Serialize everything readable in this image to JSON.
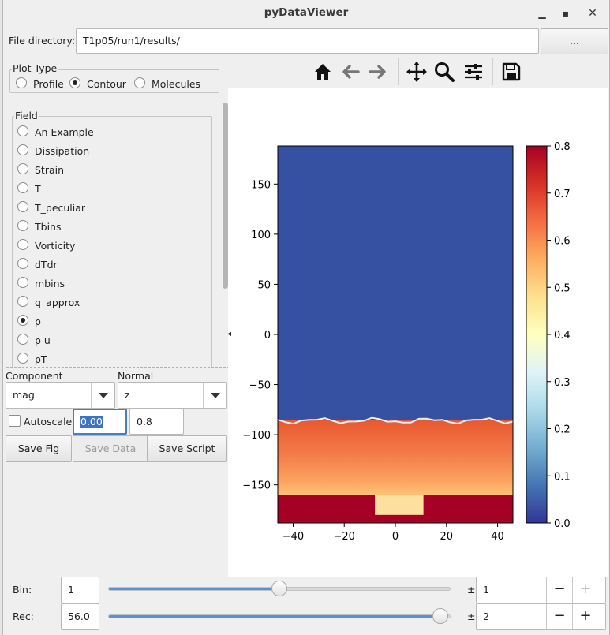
{
  "window": {
    "title": "pyDataViewer"
  },
  "file_dir": {
    "label": "File directory:",
    "value": "T1p05/run1/results/",
    "browse_label": "..."
  },
  "plot_type": {
    "title": "Plot Type",
    "options": [
      "Profile",
      "Contour",
      "Molecules"
    ],
    "selected": "Contour"
  },
  "field": {
    "title": "Field",
    "items": [
      "An Example",
      "Dissipation",
      "Strain",
      "T",
      "T_peculiar",
      "Tbins",
      "Vorticity",
      "dTdr",
      "mbins",
      "q_approx",
      "ρ",
      "ρ u",
      "ρT"
    ],
    "selected": "ρ"
  },
  "component": {
    "label": "Component",
    "value": "mag"
  },
  "normal": {
    "label": "Normal",
    "value": "z"
  },
  "autoscale": {
    "label": "Autoscale",
    "checked": false,
    "min": "0.00",
    "max": "0.8"
  },
  "buttons": {
    "save_fig": "Save Fig",
    "save_data": "Save Data",
    "save_script": "Save Script"
  },
  "toolbar": [
    "home-icon",
    "back-arrow-icon",
    "forward-arrow-icon",
    "pan-icon",
    "zoom-icon",
    "configure-subplots-icon",
    "save-icon"
  ],
  "bin": {
    "label": "Bin:",
    "value": "1",
    "slider_fraction": 0.5,
    "pm": "±",
    "step": "1"
  },
  "rec": {
    "label": "Rec:",
    "value": "56.0",
    "slider_fraction": 0.97,
    "pm": "±",
    "step": "2"
  },
  "spin": {
    "minus": "−",
    "plus": "+"
  },
  "chart_data": {
    "type": "heatmap",
    "x_ticks": [
      -40,
      -20,
      0,
      20,
      40
    ],
    "y_ticks": [
      150,
      100,
      50,
      0,
      -50,
      -100,
      -150
    ],
    "xlim": [
      -46,
      46
    ],
    "ylim": [
      -188,
      188
    ],
    "colorbar": {
      "ticks": [
        "0.0",
        "0.1",
        "0.2",
        "0.3",
        "0.4",
        "0.5",
        "0.6",
        "0.7",
        "0.8"
      ],
      "range": [
        0,
        0.8
      ],
      "colormap": "RdYlBu_r"
    },
    "regions": [
      {
        "y_range": [
          -85,
          188
        ],
        "value": 0.02
      },
      {
        "y_range": [
          -160,
          -85
        ],
        "value": 0.68
      },
      {
        "y_range": [
          -188,
          -160
        ],
        "value": 0.8
      }
    ]
  }
}
